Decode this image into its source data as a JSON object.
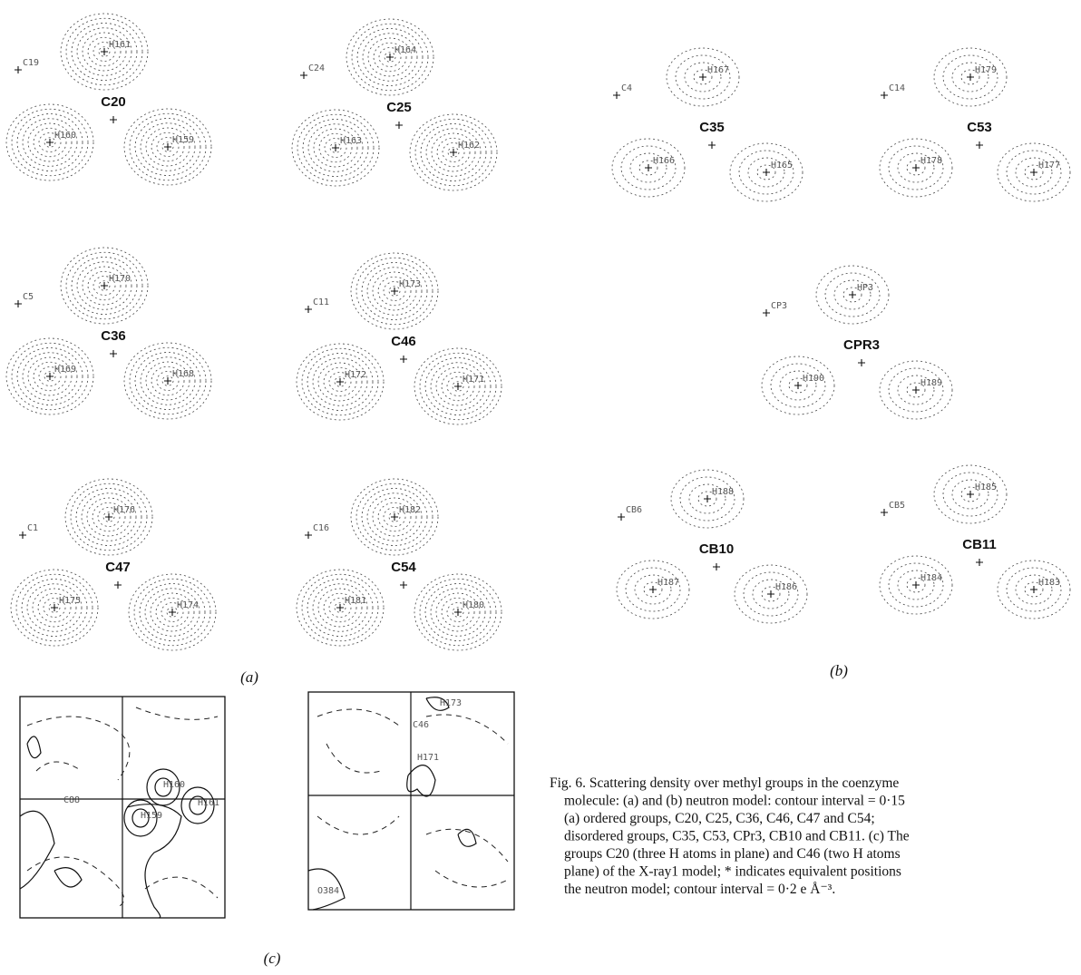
{
  "panel_a": {
    "label": "(a)",
    "groups": [
      {
        "name": "C20",
        "atoms": [
          "H161",
          "H160",
          "H159",
          "C19"
        ]
      },
      {
        "name": "C25",
        "atoms": [
          "H164",
          "H163",
          "H162",
          "C24"
        ]
      },
      {
        "name": "C36",
        "atoms": [
          "H170",
          "H169",
          "H168",
          "C5"
        ]
      },
      {
        "name": "C46",
        "atoms": [
          "H173",
          "H172",
          "H171",
          "C11"
        ]
      },
      {
        "name": "C47",
        "atoms": [
          "H176",
          "H175",
          "H174",
          "C1"
        ]
      },
      {
        "name": "C54",
        "atoms": [
          "H182",
          "H181",
          "H180",
          "C16"
        ]
      }
    ]
  },
  "panel_b": {
    "label": "(b)",
    "groups": [
      {
        "name": "C35",
        "atoms": [
          "H167",
          "H166",
          "H165",
          "C4"
        ]
      },
      {
        "name": "C53",
        "atoms": [
          "H179",
          "H178",
          "H177",
          "C14"
        ]
      },
      {
        "name": "CPR3",
        "atoms": [
          "HP3",
          "H190",
          "H189",
          "CP3"
        ]
      },
      {
        "name": "CB10",
        "atoms": [
          "H188",
          "H187",
          "H186",
          "CB6"
        ]
      },
      {
        "name": "CB11",
        "atoms": [
          "H185",
          "H184",
          "H183",
          "CB5"
        ]
      }
    ]
  },
  "panel_c": {
    "label": "(c)",
    "plots": [
      {
        "atoms": [
          "C88",
          "H160",
          "H159",
          "H161"
        ]
      },
      {
        "atoms": [
          "H173",
          "C46",
          "H171",
          "O384"
        ]
      }
    ]
  },
  "caption": [
    "Fig. 6. Scattering density over methyl groups in the coenzyme",
    "molecule: (a) and (b) neutron model: contour interval = 0·15",
    "(a) ordered groups, C20, C25, C36, C46, C47 and C54;",
    "disordered groups, C35, C53, CPr3, CB10 and CB11. (c) The",
    "groups C20 (three H atoms in plane) and C46 (two H atoms",
    "plane) of the X-ray1 model; * indicates equivalent positions",
    "the neutron model; contour interval = 0·2 e Å⁻³."
  ]
}
